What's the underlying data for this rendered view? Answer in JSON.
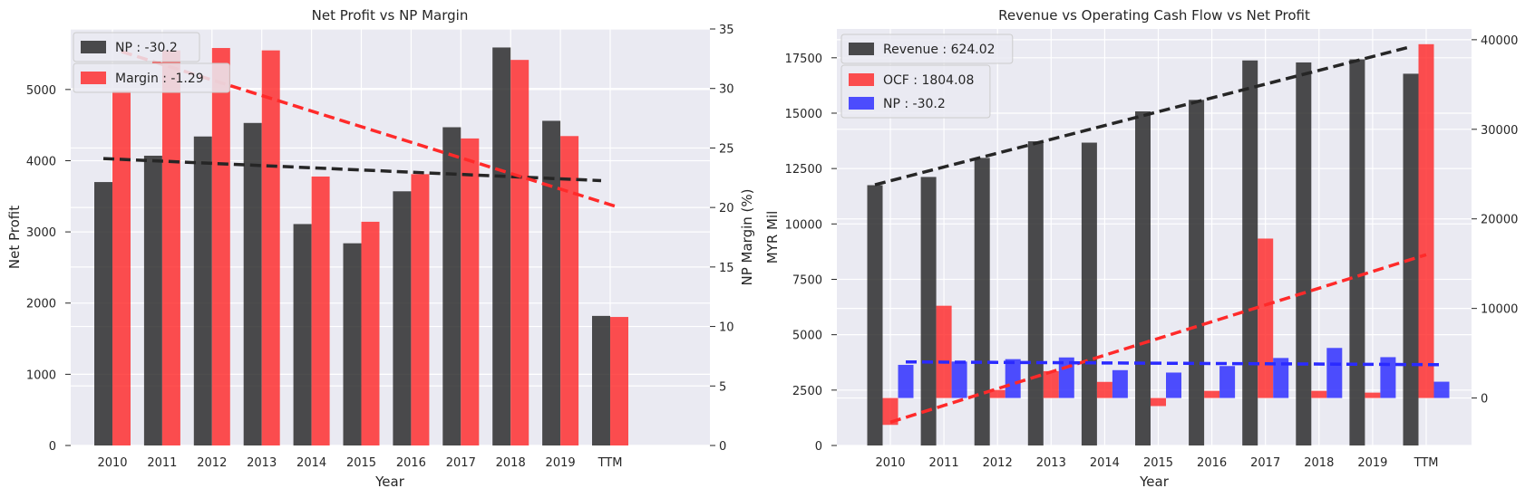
{
  "colors": {
    "background": "#eaeaf2",
    "grid": "#ffffff",
    "black_series": "#262626",
    "red_series": "#ff2a2a",
    "blue_series": "#2a2aff"
  },
  "chart_data": [
    {
      "type": "bar",
      "title": "Net Profit vs NP Margin",
      "xlabel": "Year",
      "ylabel": "Net Profit",
      "ylabel_right": "NP Margin (%)",
      "categories": [
        "2010",
        "2011",
        "2012",
        "2013",
        "2014",
        "2015",
        "2016",
        "2017",
        "2018",
        "2019",
        "TTM"
      ],
      "ylim": [
        0,
        5850
      ],
      "y_ticks": [
        0,
        1000,
        2000,
        3000,
        4000,
        5000
      ],
      "ylim_right": [
        0,
        35
      ],
      "y_ticks_right": [
        0,
        5,
        10,
        15,
        20,
        25,
        30,
        35
      ],
      "series": [
        {
          "name": "NP : -30.2",
          "axis": "left",
          "color": "black",
          "values": [
            3700,
            4070,
            4340,
            4530,
            3110,
            2840,
            3570,
            4470,
            5590,
            4560,
            1820
          ],
          "trend": [
            4030,
            3720
          ]
        },
        {
          "name": "Margin : -1.29",
          "axis": "right",
          "color": "red",
          "values": [
            29.8,
            33.2,
            33.4,
            33.2,
            22.6,
            18.8,
            22.8,
            25.8,
            32.4,
            26.0,
            10.8
          ],
          "trend": [
            33.1,
            20.0
          ]
        }
      ],
      "legend": "top-left",
      "grid": true
    },
    {
      "type": "bar",
      "title": "Revenue vs Operating Cash Flow vs Net Profit",
      "xlabel": "Year",
      "ylabel": "MYR Mil",
      "categories": [
        "2010",
        "2011",
        "2012",
        "2013",
        "2014",
        "2015",
        "2016",
        "2017",
        "2018",
        "2019",
        "TTM"
      ],
      "ylim": [
        0,
        18800
      ],
      "y_ticks": [
        0,
        2500,
        5000,
        7500,
        10000,
        12500,
        15000,
        17500
      ],
      "ylim_right": [
        -5300,
        41200
      ],
      "y_ticks_right": [
        0,
        10000,
        20000,
        30000,
        40000
      ],
      "series": [
        {
          "name": "Revenue : 624.02",
          "axis": "left",
          "color": "black",
          "values": [
            11750,
            12120,
            12980,
            13730,
            13670,
            15080,
            15600,
            17380,
            17290,
            17430,
            16780
          ],
          "trend": [
            11770,
            18000
          ]
        },
        {
          "name": "OCF : 1804.08",
          "axis": "right",
          "color": "red",
          "values": [
            -3000,
            10300,
            900,
            3000,
            1800,
            -900,
            800,
            17800,
            800,
            600,
            39500
          ],
          "trend": [
            -2700,
            16000
          ]
        },
        {
          "name": "NP : -30.2",
          "axis": "right",
          "color": "blue",
          "values": [
            3700,
            4070,
            4340,
            4530,
            3110,
            2840,
            3570,
            4470,
            5590,
            4560,
            1820
          ],
          "trend": [
            4030,
            3720
          ]
        }
      ],
      "legend": "top-left",
      "grid": true
    }
  ]
}
